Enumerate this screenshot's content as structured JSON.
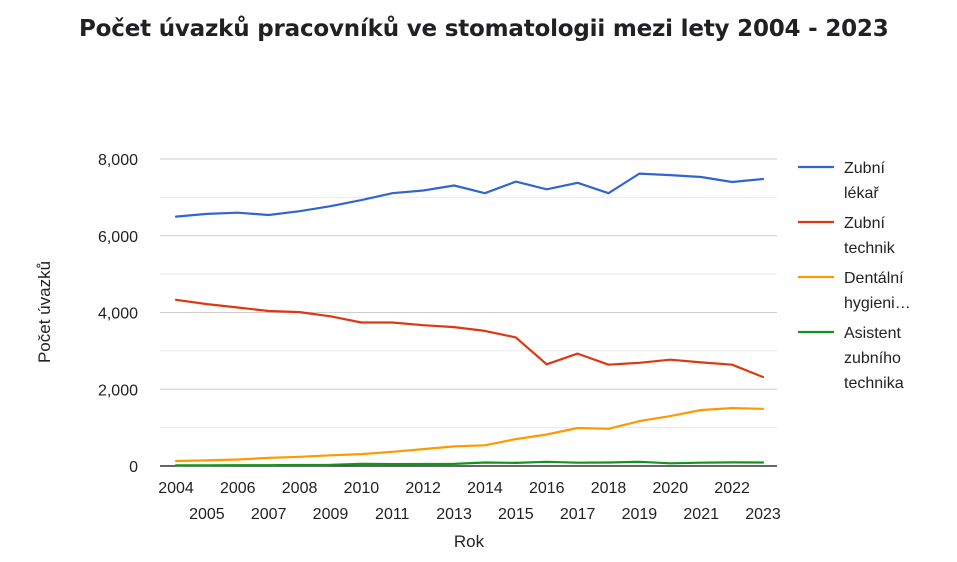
{
  "chart_data": {
    "type": "line",
    "title": "Počet úvazků pracovníků ve stomatologii mezi lety 2004 - 2023",
    "xlabel": "Rok",
    "ylabel": "Počet úvazků",
    "x": [
      2004,
      2005,
      2006,
      2007,
      2008,
      2009,
      2010,
      2011,
      2012,
      2013,
      2014,
      2015,
      2016,
      2017,
      2018,
      2019,
      2020,
      2021,
      2022,
      2023
    ],
    "x_tick_labels": [
      "2004",
      "2005",
      "2006",
      "2007",
      "2008",
      "2009",
      "2010",
      "2011",
      "2012",
      "2013",
      "2014",
      "2015",
      "2016",
      "2017",
      "2018",
      "2019",
      "2020",
      "2021",
      "2022",
      "2023"
    ],
    "ylim": [
      0,
      8000
    ],
    "y_ticks": [
      0,
      2000,
      4000,
      6000,
      8000
    ],
    "y_tick_labels": [
      "0",
      "2,000",
      "4,000",
      "6,000",
      "8,000"
    ],
    "grid": true,
    "legend_position": "right",
    "series": [
      {
        "name": "Zubní lékař",
        "legend_lines": [
          "Zubní",
          "lékař"
        ],
        "color": "#3366cc",
        "values": [
          6500,
          6570,
          6600,
          6540,
          6640,
          6770,
          6930,
          7110,
          7180,
          7310,
          7110,
          7410,
          7210,
          7380,
          7110,
          7620,
          7580,
          7530,
          7400,
          7480
        ]
      },
      {
        "name": "Zubní technik",
        "legend_lines": [
          "Zubní",
          "technik"
        ],
        "color": "#dc3912",
        "values": [
          4330,
          4220,
          4130,
          4040,
          4010,
          3900,
          3740,
          3740,
          3670,
          3620,
          3520,
          3350,
          2650,
          2930,
          2640,
          2690,
          2770,
          2700,
          2640,
          2320
        ]
      },
      {
        "name": "Dentální hygieni…",
        "legend_lines": [
          "Dentální",
          "hygieni…"
        ],
        "color": "#ff9900",
        "values": [
          130,
          145,
          170,
          210,
          240,
          280,
          310,
          370,
          440,
          510,
          540,
          700,
          820,
          990,
          970,
          1170,
          1300,
          1460,
          1510,
          1490
        ]
      },
      {
        "name": "Asistent zubního technika",
        "legend_lines": [
          "Asistent",
          "zubního",
          "technika"
        ],
        "color": "#109618",
        "values": [
          15,
          18,
          20,
          22,
          25,
          28,
          55,
          50,
          52,
          55,
          90,
          80,
          110,
          85,
          90,
          110,
          70,
          85,
          95,
          90
        ]
      }
    ]
  }
}
